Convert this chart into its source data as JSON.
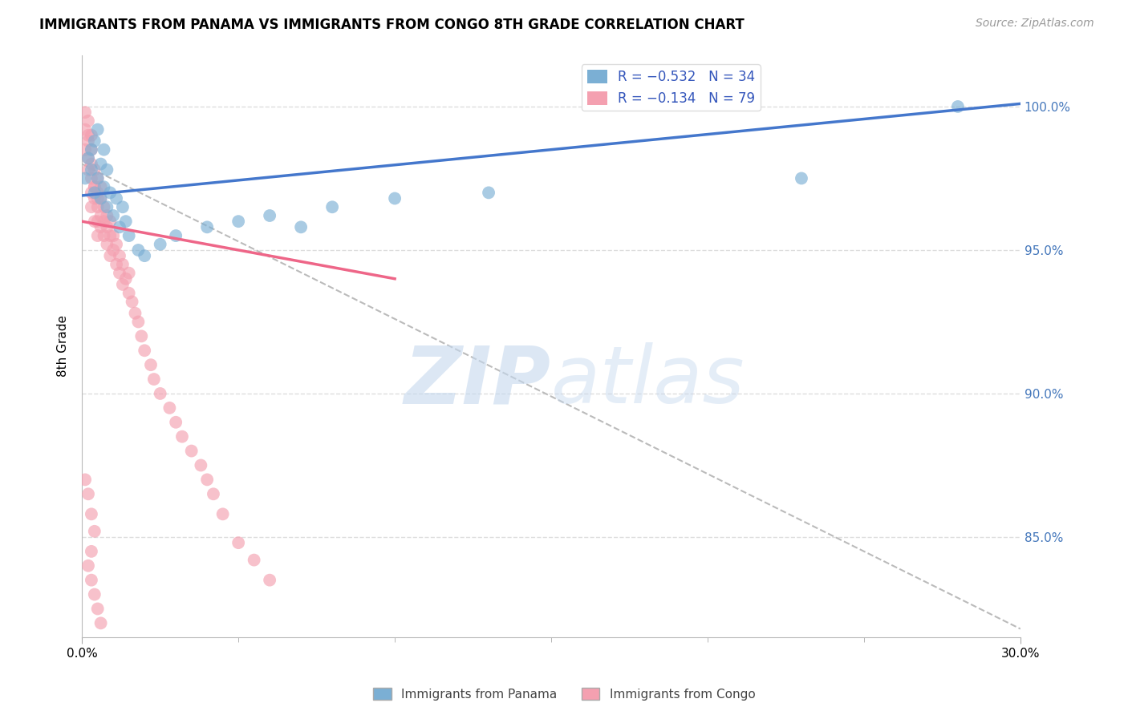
{
  "title": "IMMIGRANTS FROM PANAMA VS IMMIGRANTS FROM CONGO 8TH GRADE CORRELATION CHART",
  "source": "Source: ZipAtlas.com",
  "ylabel": "8th Grade",
  "yaxis_values": [
    1.0,
    0.95,
    0.9,
    0.85
  ],
  "yaxis_labels": [
    "100.0%",
    "95.0%",
    "90.0%",
    "85.0%"
  ],
  "xlim": [
    0.0,
    0.3
  ],
  "ylim": [
    0.815,
    1.018
  ],
  "panama_color": "#7BAFD4",
  "congo_color": "#F4A0B0",
  "trendline_panama_color": "#4477CC",
  "trendline_congo_color": "#EE6688",
  "trendline_dashed_color": "#BBBBBB",
  "background_color": "#FFFFFF",
  "grid_color": "#DDDDDD",
  "panama_trend_x": [
    0.0,
    0.3
  ],
  "panama_trend_y": [
    0.969,
    1.001
  ],
  "congo_trend_x": [
    0.0,
    0.1
  ],
  "congo_trend_y": [
    0.96,
    0.94
  ],
  "dashed_trend_x": [
    0.0,
    0.3
  ],
  "dashed_trend_y": [
    0.98,
    0.818
  ],
  "panama_scatter_x": [
    0.001,
    0.002,
    0.003,
    0.003,
    0.004,
    0.004,
    0.005,
    0.005,
    0.006,
    0.006,
    0.007,
    0.007,
    0.008,
    0.008,
    0.009,
    0.01,
    0.011,
    0.012,
    0.013,
    0.014,
    0.015,
    0.018,
    0.02,
    0.025,
    0.03,
    0.04,
    0.05,
    0.06,
    0.07,
    0.08,
    0.1,
    0.13,
    0.23,
    0.28
  ],
  "panama_scatter_y": [
    0.975,
    0.982,
    0.978,
    0.985,
    0.97,
    0.988,
    0.975,
    0.992,
    0.98,
    0.968,
    0.972,
    0.985,
    0.965,
    0.978,
    0.97,
    0.962,
    0.968,
    0.958,
    0.965,
    0.96,
    0.955,
    0.95,
    0.948,
    0.952,
    0.955,
    0.958,
    0.96,
    0.962,
    0.958,
    0.965,
    0.968,
    0.97,
    0.975,
    1.0
  ],
  "congo_scatter_x": [
    0.001,
    0.001,
    0.002,
    0.002,
    0.002,
    0.003,
    0.003,
    0.003,
    0.003,
    0.004,
    0.004,
    0.004,
    0.005,
    0.005,
    0.005,
    0.005,
    0.006,
    0.006,
    0.006,
    0.007,
    0.007,
    0.007,
    0.008,
    0.008,
    0.008,
    0.009,
    0.009,
    0.009,
    0.01,
    0.01,
    0.011,
    0.011,
    0.012,
    0.012,
    0.013,
    0.013,
    0.014,
    0.015,
    0.015,
    0.016,
    0.017,
    0.018,
    0.019,
    0.02,
    0.022,
    0.023,
    0.025,
    0.028,
    0.03,
    0.032,
    0.035,
    0.038,
    0.04,
    0.042,
    0.045,
    0.05,
    0.055,
    0.06,
    0.001,
    0.002,
    0.002,
    0.003,
    0.003,
    0.004,
    0.004,
    0.005,
    0.005,
    0.006,
    0.001,
    0.002,
    0.003,
    0.004,
    0.002,
    0.003,
    0.003,
    0.004,
    0.005,
    0.006
  ],
  "congo_scatter_y": [
    0.998,
    0.992,
    0.988,
    0.982,
    0.995,
    0.975,
    0.98,
    0.985,
    0.99,
    0.972,
    0.978,
    0.968,
    0.97,
    0.975,
    0.965,
    0.96,
    0.968,
    0.972,
    0.958,
    0.965,
    0.96,
    0.955,
    0.962,
    0.958,
    0.952,
    0.955,
    0.948,
    0.96,
    0.95,
    0.955,
    0.945,
    0.952,
    0.948,
    0.942,
    0.945,
    0.938,
    0.94,
    0.935,
    0.942,
    0.932,
    0.928,
    0.925,
    0.92,
    0.915,
    0.91,
    0.905,
    0.9,
    0.895,
    0.89,
    0.885,
    0.88,
    0.875,
    0.87,
    0.865,
    0.858,
    0.848,
    0.842,
    0.835,
    0.985,
    0.978,
    0.99,
    0.97,
    0.965,
    0.972,
    0.96,
    0.968,
    0.955,
    0.962,
    0.87,
    0.865,
    0.858,
    0.852,
    0.84,
    0.835,
    0.845,
    0.83,
    0.825,
    0.82
  ]
}
